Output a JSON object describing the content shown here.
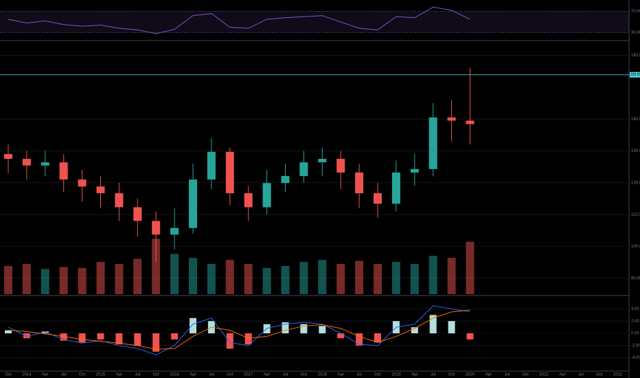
{
  "chart_data": [
    {
      "type": "line",
      "color": "#7e57c2",
      "ylim": [
        20,
        85
      ],
      "yticks": [
        {
          "value": 70,
          "label": "70.00"
        },
        {
          "value": 30,
          "label": "30.00"
        }
      ],
      "values": [
        55,
        48,
        52,
        45,
        42,
        44,
        38,
        35,
        28,
        36,
        62,
        66,
        40,
        38,
        55,
        58,
        60,
        62,
        50,
        38,
        35,
        60,
        58,
        78,
        72,
        55,
        null,
        null,
        null,
        null,
        null,
        null,
        null,
        null
      ]
    },
    {
      "type": "candlestick",
      "up_color": "#26a69a",
      "down_color": "#ef5350",
      "ylim": [
        85,
        164
      ],
      "yticks": [
        {
          "value": 90,
          "label": "90.00"
        },
        {
          "value": 100,
          "label": "100.00"
        },
        {
          "value": 110,
          "label": "110.00"
        },
        {
          "value": 120,
          "label": "120.00"
        },
        {
          "value": 130,
          "label": "130.00"
        },
        {
          "value": 140,
          "label": "140.00"
        },
        {
          "value": 160,
          "label": "160.00"
        }
      ],
      "hline": {
        "value": 153.9,
        "label": "153.90",
        "color": "#4dd0e1"
      },
      "categories": [
        "Oct",
        "2014",
        "Apr",
        "Jul",
        "Oct",
        "2015",
        "Apr",
        "Jul",
        "Oct",
        "2016",
        "Apr",
        "Jul",
        "Oct",
        "2017",
        "Apr",
        "Jul",
        "Oct",
        "2018",
        "Apr",
        "Jul",
        "Oct",
        "2019",
        "Apr",
        "Jul",
        "Oct",
        "2020",
        "Apr",
        "Jul",
        "Oct",
        "2021",
        "Apr",
        "Jul",
        "Oct",
        "2022"
      ],
      "open": [
        129.0,
        127.5,
        125.4,
        126.4,
        121.0,
        118.8,
        116.7,
        112.3,
        108.0,
        103.7,
        105.8,
        121.0,
        129.7,
        116.7,
        112.3,
        119.9,
        122.1,
        126.4,
        127.5,
        123.2,
        116.7,
        113.4,
        123.2,
        124.3,
        140.5,
        139.5,
        null,
        null,
        null,
        null,
        null,
        null,
        null,
        null
      ],
      "high": [
        132,
        130,
        130,
        129,
        124,
        122,
        120,
        115,
        111,
        112,
        126,
        134,
        131,
        119,
        124,
        126,
        130,
        131,
        130,
        126,
        120,
        127,
        129,
        145,
        146,
        156,
        null,
        null,
        null,
        null,
        null,
        null,
        null,
        null
      ],
      "low": [
        123,
        121,
        122,
        117,
        114,
        112,
        108,
        103,
        95,
        99,
        104,
        118,
        113,
        108,
        110,
        117,
        120,
        122,
        118,
        112,
        109,
        111,
        119,
        122,
        133,
        132,
        null,
        null,
        null,
        null,
        null,
        null,
        null,
        null
      ],
      "close": [
        127.5,
        125.4,
        126.4,
        121.0,
        118.8,
        116.7,
        112.3,
        108.0,
        103.7,
        105.8,
        121.0,
        129.7,
        116.7,
        112.3,
        119.9,
        122.1,
        126.4,
        127.5,
        123.2,
        116.7,
        113.4,
        123.2,
        124.3,
        140.5,
        139.5,
        138.4,
        null,
        null,
        null,
        null,
        null,
        null,
        null,
        null
      ]
    },
    {
      "type": "bar",
      "ylim": [
        0,
        60
      ],
      "values": [
        28,
        30,
        25,
        27,
        26,
        32,
        30,
        35,
        55,
        40,
        36,
        30,
        34,
        30,
        26,
        28,
        32,
        34,
        30,
        33,
        30,
        32,
        30,
        38,
        36,
        52,
        null,
        null,
        null,
        null,
        null,
        null,
        null,
        null
      ]
    },
    {
      "type": "macd",
      "up_color": "#b2dfdb",
      "down_color": "#ef5350",
      "ylim": [
        -5.5,
        5.5
      ],
      "yticks": [
        {
          "value": 4,
          "label": "4.00"
        },
        {
          "value": 2,
          "label": "2.00"
        },
        {
          "value": 0,
          "label": "0.00"
        },
        {
          "value": -2,
          "label": "-2.00"
        },
        {
          "value": -4,
          "label": "-4.00"
        }
      ],
      "values": [
        0.5,
        -0.8,
        0.3,
        -1.2,
        -1.5,
        -1.0,
        -1.8,
        -2.0,
        -3.0,
        -1.0,
        2.5,
        2.0,
        -2.5,
        -1.8,
        1.5,
        1.8,
        1.5,
        1.2,
        -0.8,
        -2.0,
        -1.5,
        2.0,
        1.0,
        3.0,
        2.0,
        -1.0,
        null,
        null,
        null,
        null,
        null,
        null,
        null,
        null
      ],
      "lines": [
        {
          "color": "#2962ff",
          "values": [
            1.0,
            -0.5,
            0.2,
            -1.0,
            -1.6,
            -1.2,
            -2.0,
            -2.5,
            -3.5,
            -2.0,
            1.5,
            2.5,
            -1.5,
            -2.0,
            0.8,
            1.5,
            1.8,
            1.5,
            0.0,
            -1.8,
            -2.0,
            1.0,
            1.5,
            4.5,
            4.0,
            3.5,
            null,
            null,
            null,
            null,
            null,
            null,
            null,
            null
          ]
        },
        {
          "color": "#ff6d00",
          "values": [
            0.5,
            0.3,
            -0.1,
            -0.5,
            -1.0,
            -1.3,
            -1.6,
            -2.0,
            -2.6,
            -2.5,
            -0.5,
            1.0,
            0.5,
            -0.8,
            -0.5,
            0.5,
            1.2,
            1.4,
            0.8,
            -0.5,
            -1.5,
            -0.5,
            0.8,
            2.5,
            3.5,
            3.8,
            null,
            null,
            null,
            null,
            null,
            null,
            null,
            null
          ]
        }
      ]
    }
  ]
}
